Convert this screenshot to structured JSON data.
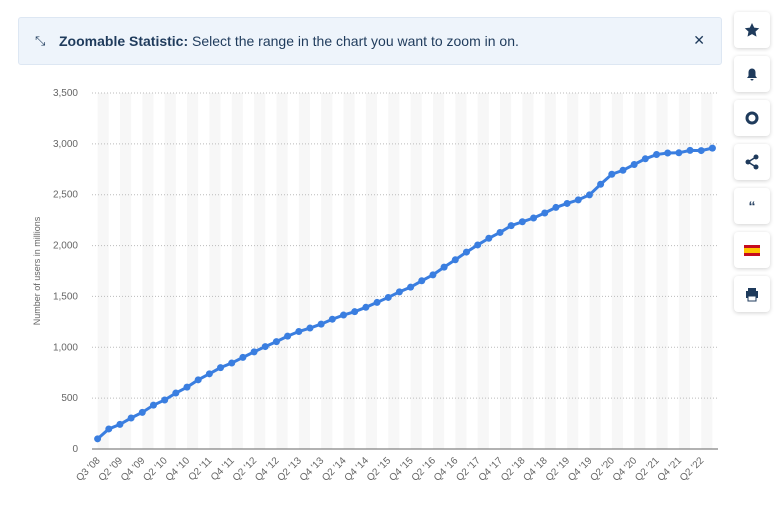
{
  "banner": {
    "title": "Zoomable Statistic:",
    "text": "Select the range in the chart you want to zoom in on."
  },
  "chart_data": {
    "type": "line",
    "y_label": "Number of users in millions",
    "color": "#3a7ee0",
    "categories": [
      "Q3 '08",
      null,
      "Q2 '09",
      null,
      "Q4 '09",
      null,
      "Q2 '10",
      null,
      "Q4 '10",
      null,
      "Q2 '11",
      null,
      "Q4 '11",
      null,
      "Q2 '12",
      null,
      "Q4 '12",
      null,
      "Q2 '13",
      null,
      "Q4 '13",
      null,
      "Q2 '14",
      null,
      "Q4 '14",
      null,
      "Q2 '15",
      null,
      "Q4 '15",
      null,
      "Q2 '16",
      null,
      "Q4 '16",
      null,
      "Q2 '17",
      null,
      "Q4 '17",
      null,
      "Q2 '18",
      null,
      "Q4 '18",
      null,
      "Q2 '19",
      null,
      "Q4 '19",
      null,
      "Q2 '20",
      null,
      "Q4 '20",
      null,
      "Q2 '21",
      null,
      "Q4 '21",
      null,
      "Q2 '22",
      null
    ],
    "values": [
      100,
      197,
      242,
      305,
      360,
      431,
      482,
      550,
      608,
      680,
      739,
      800,
      845,
      901,
      955,
      1007,
      1056,
      1110,
      1155,
      1189,
      1228,
      1276,
      1317,
      1350,
      1393,
      1441,
      1490,
      1545,
      1591,
      1654,
      1712,
      1788,
      1860,
      1936,
      2006,
      2072,
      2129,
      2196,
      2234,
      2271,
      2320,
      2375,
      2414,
      2449,
      2498,
      2603,
      2701,
      2740,
      2797,
      2853,
      2895,
      2910,
      2912,
      2936,
      2934,
      2958
    ],
    "ylim": [
      0,
      3500
    ],
    "yticks": [
      0,
      500,
      {
        "value": 1000,
        "label": "1,000"
      },
      {
        "value": 1500,
        "label": "1,500"
      },
      {
        "value": 2000,
        "label": "2,000"
      },
      {
        "value": 2500,
        "label": "2,500"
      },
      {
        "value": 3000,
        "label": "3,000"
      },
      {
        "value": 3500,
        "label": "3,500"
      }
    ],
    "grid": true
  }
}
